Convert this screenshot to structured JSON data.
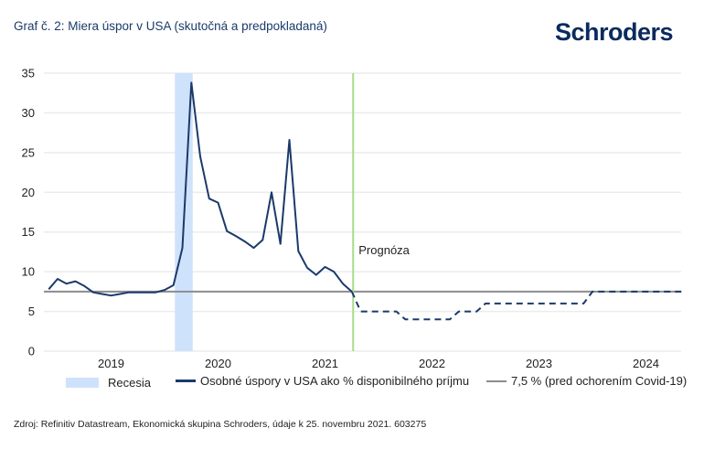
{
  "header": {
    "title": "Graf č. 2: Miera úspor v USA (skutočná a predpokladaná)",
    "logo": "Schroders"
  },
  "chart_data": {
    "type": "line",
    "title": "Graf č. 2: Miera úspor v USA (skutočná a predpokladaná)",
    "xlabel": "",
    "ylabel": "",
    "ylim": [
      0,
      35
    ],
    "yticks": [
      "0",
      "5",
      "10",
      "15",
      "20",
      "25",
      "30",
      "35"
    ],
    "xticks": [
      "2019",
      "2020",
      "2021",
      "2022",
      "2023",
      "2024"
    ],
    "grid": true,
    "legend_position": "bottom",
    "annotation": "Prognóza",
    "forecast_start": "2021-10",
    "recession": {
      "name": "Recesia",
      "from": "2020-02",
      "to": "2020-04",
      "color": "#cfe2fb"
    },
    "reference": {
      "name": "7,5 % (pred ochorením Covid-19)",
      "value": 7.5,
      "color": "#8c8c8c"
    },
    "series": [
      {
        "name": "Osobné úspory v USA ako % disponibilného príjmu",
        "color": "#1b3a6b",
        "style": "solid",
        "points": [
          [
            "2018-12",
            7.8
          ],
          [
            "2019-01",
            9.1
          ],
          [
            "2019-02",
            8.5
          ],
          [
            "2019-03",
            8.8
          ],
          [
            "2019-04",
            8.2
          ],
          [
            "2019-05",
            7.4
          ],
          [
            "2019-06",
            7.2
          ],
          [
            "2019-07",
            7.0
          ],
          [
            "2019-08",
            7.2
          ],
          [
            "2019-09",
            7.4
          ],
          [
            "2019-10",
            7.4
          ],
          [
            "2019-11",
            7.4
          ],
          [
            "2019-12",
            7.4
          ],
          [
            "2020-01",
            7.7
          ],
          [
            "2020-02",
            8.3
          ],
          [
            "2020-03",
            13.0
          ],
          [
            "2020-04",
            33.8
          ],
          [
            "2020-05",
            24.5
          ],
          [
            "2020-06",
            19.2
          ],
          [
            "2020-07",
            18.7
          ],
          [
            "2020-08",
            15.1
          ],
          [
            "2020-09",
            14.5
          ],
          [
            "2020-10",
            13.8
          ],
          [
            "2020-11",
            13.0
          ],
          [
            "2020-12",
            14.0
          ],
          [
            "2021-01",
            20.0
          ],
          [
            "2021-02",
            13.5
          ],
          [
            "2021-03",
            26.6
          ],
          [
            "2021-04",
            12.6
          ],
          [
            "2021-05",
            10.5
          ],
          [
            "2021-06",
            9.6
          ],
          [
            "2021-07",
            10.6
          ],
          [
            "2021-08",
            10.0
          ],
          [
            "2021-09",
            8.5
          ],
          [
            "2021-10",
            7.5
          ]
        ]
      },
      {
        "name": "Prognóza",
        "color": "#1b3a6b",
        "style": "dashed",
        "points": [
          [
            "2021-10",
            7.5
          ],
          [
            "2021-11",
            5.0
          ],
          [
            "2021-12",
            5.0
          ],
          [
            "2022-01",
            5.0
          ],
          [
            "2022-02",
            5.0
          ],
          [
            "2022-03",
            5.0
          ],
          [
            "2022-04",
            4.0
          ],
          [
            "2022-05",
            4.0
          ],
          [
            "2022-06",
            4.0
          ],
          [
            "2022-07",
            4.0
          ],
          [
            "2022-08",
            4.0
          ],
          [
            "2022-09",
            4.0
          ],
          [
            "2022-10",
            5.0
          ],
          [
            "2022-11",
            5.0
          ],
          [
            "2022-12",
            5.0
          ],
          [
            "2023-01",
            6.0
          ],
          [
            "2023-02",
            6.0
          ],
          [
            "2023-03",
            6.0
          ],
          [
            "2023-04",
            6.0
          ],
          [
            "2023-05",
            6.0
          ],
          [
            "2023-06",
            6.0
          ],
          [
            "2023-07",
            6.0
          ],
          [
            "2023-08",
            6.0
          ],
          [
            "2023-09",
            6.0
          ],
          [
            "2023-10",
            6.0
          ],
          [
            "2023-11",
            6.0
          ],
          [
            "2023-12",
            6.0
          ],
          [
            "2024-01",
            7.5
          ],
          [
            "2024-02",
            7.5
          ],
          [
            "2024-03",
            7.5
          ],
          [
            "2024-04",
            7.5
          ],
          [
            "2024-05",
            7.5
          ],
          [
            "2024-06",
            7.5
          ],
          [
            "2024-07",
            7.5
          ],
          [
            "2024-08",
            7.5
          ],
          [
            "2024-09",
            7.5
          ],
          [
            "2024-10",
            7.5
          ],
          [
            "2024-11",
            7.5
          ]
        ]
      }
    ]
  },
  "legend": {
    "recession": "Recesia",
    "savings": "Osobné úspory v USA ako % disponibilného príjmu",
    "reference": "7,5 % (pred ochorením Covid-19)"
  },
  "source": "Zdroj: Refinitiv Datastream, Ekonomická skupina Schroders, údaje k 25. novembru 2021. 603275"
}
